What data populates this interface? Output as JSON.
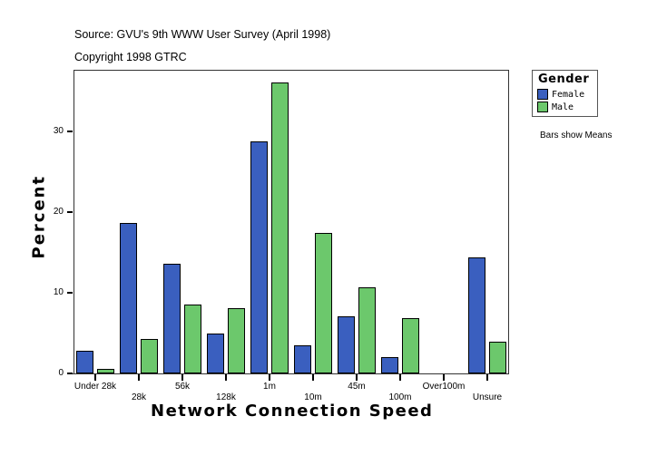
{
  "header": {
    "source": "Source: GVU's 9th WWW User Survey (April 1998)",
    "copyright": "Copyright 1998 GTRC"
  },
  "legend": {
    "title": "Gender",
    "items": [
      {
        "label": "Female",
        "color": "#3a5fbf"
      },
      {
        "label": "Male",
        "color": "#6cc86c"
      }
    ]
  },
  "note": "Bars show Means",
  "axes": {
    "ylabel": "Percent",
    "xlabel": "Network Connection Speed",
    "yticks": [
      "0",
      "10",
      "20",
      "30"
    ]
  },
  "chart_data": {
    "type": "bar",
    "title": "Source: GVU's 9th WWW User Survey (April 1998)",
    "subtitle": "Copyright 1998 GTRC",
    "xlabel": "Network Connection Speed",
    "ylabel": "Percent",
    "ylim": [
      0,
      37.5
    ],
    "yticks": [
      0,
      10,
      20,
      30
    ],
    "grid": false,
    "legend_position": "right",
    "legend_title": "Gender",
    "annotation": "Bars show Means",
    "categories": [
      "Under 28k",
      "28k",
      "56k",
      "128k",
      "1m",
      "10m",
      "45m",
      "100m",
      "Over100m",
      "Unsure"
    ],
    "series": [
      {
        "name": "Female",
        "color": "#3a5fbf",
        "values": [
          2.8,
          18.7,
          13.6,
          4.9,
          28.8,
          3.5,
          7.1,
          2.0,
          0,
          14.4
        ]
      },
      {
        "name": "Male",
        "color": "#6cc86c",
        "values": [
          0.6,
          4.3,
          8.5,
          8.1,
          36.1,
          17.4,
          10.7,
          6.9,
          0,
          3.9
        ]
      }
    ]
  }
}
